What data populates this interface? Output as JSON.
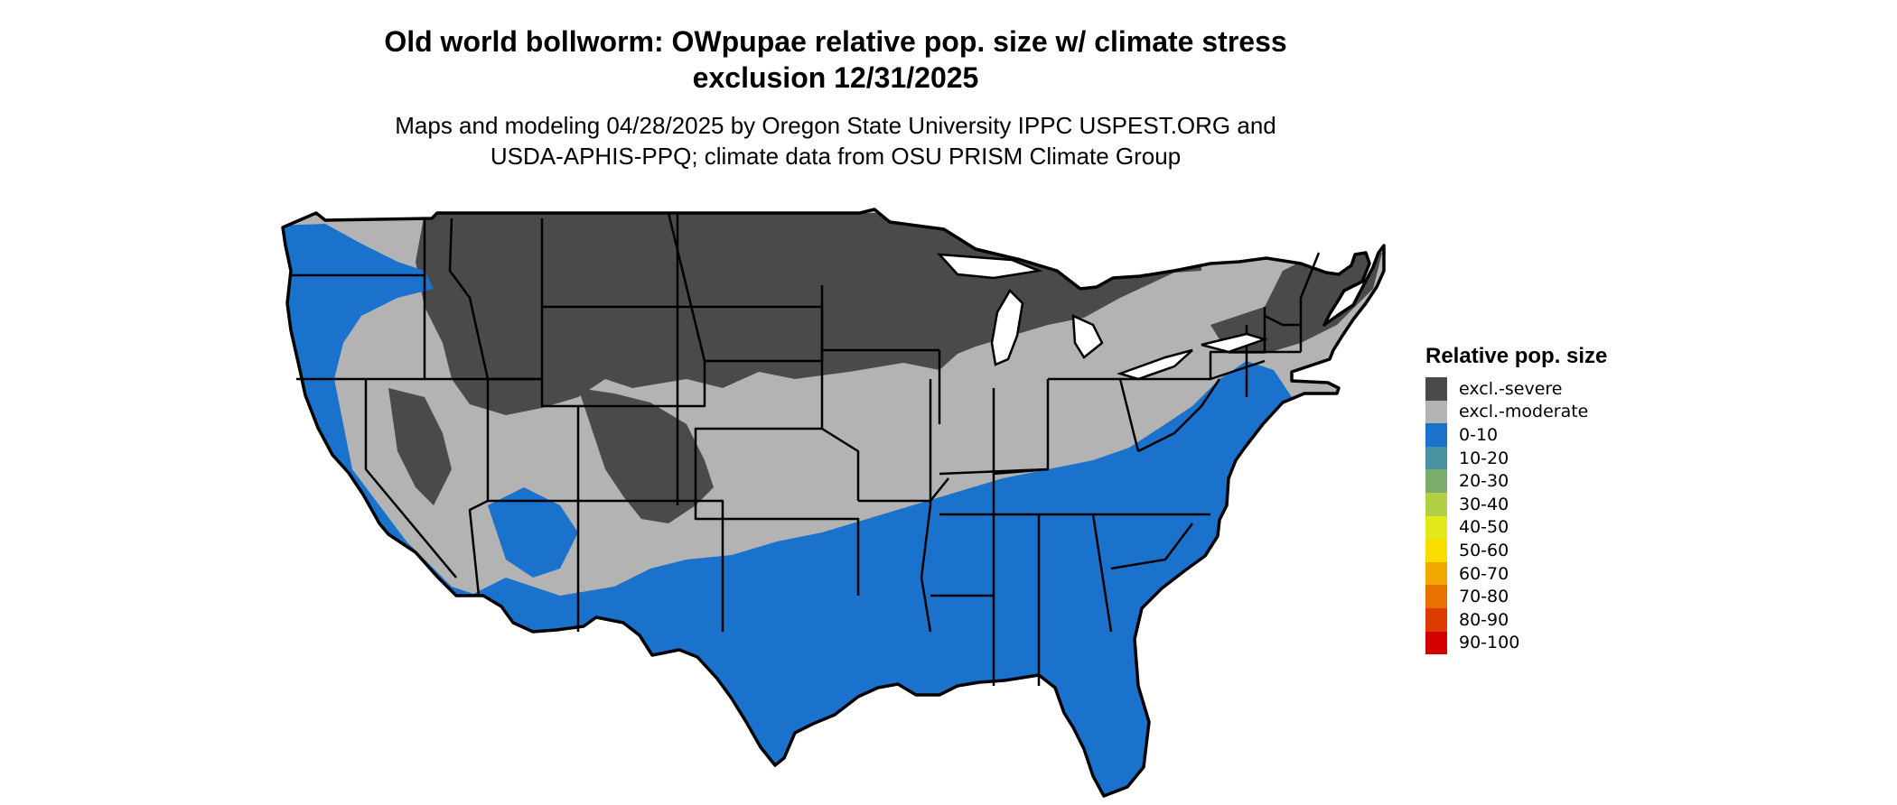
{
  "title": {
    "line1": "Old world bollworm: OWpupae relative pop. size w/ climate stress",
    "line2": "exclusion 12/31/2025"
  },
  "subtitle": {
    "line1": "Maps and modeling 04/28/2025 by Oregon State University IPPC USPEST.ORG and",
    "line2": "USDA-APHIS-PPQ; climate data from OSU PRISM Climate Group"
  },
  "legend": {
    "title": "Relative pop. size",
    "items": [
      {
        "label": "excl.-severe",
        "color": "#4a4a4a"
      },
      {
        "label": "excl.-moderate",
        "color": "#b3b3b3"
      },
      {
        "label": "0-10",
        "color": "#1a72cc"
      },
      {
        "label": "10-20",
        "color": "#4692a0"
      },
      {
        "label": "20-30",
        "color": "#7aac6e"
      },
      {
        "label": "30-40",
        "color": "#b3cf43"
      },
      {
        "label": "40-50",
        "color": "#e2e81a"
      },
      {
        "label": "50-60",
        "color": "#f7de00"
      },
      {
        "label": "60-70",
        "color": "#f0a800"
      },
      {
        "label": "70-80",
        "color": "#e87200"
      },
      {
        "label": "80-90",
        "color": "#dd3a00"
      },
      {
        "label": "90-100",
        "color": "#d40000"
      }
    ]
  },
  "map_colors": {
    "severe": "#4a4a4a",
    "moderate": "#b3b3b3",
    "low": "#1a72cc",
    "border": "#000000"
  }
}
